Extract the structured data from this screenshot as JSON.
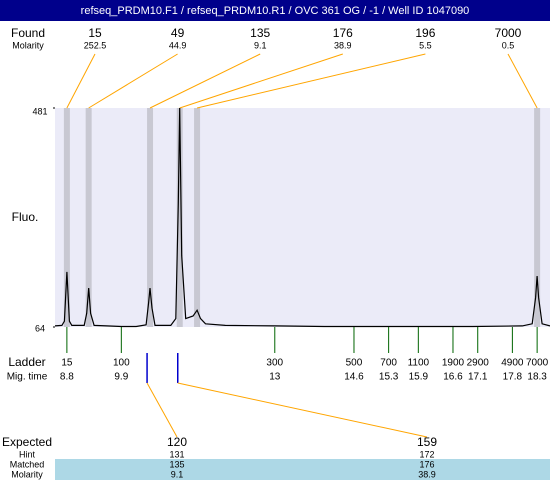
{
  "chart_data": {
    "type": "electropherogram",
    "title": "refseq_PRDM10.F1 / refseq_PRDM10.R1 / OVC 361 OG / -1 / Well ID 1047090",
    "ylabel": "Fluo.",
    "ylim": [
      64,
      481
    ],
    "yticks": [
      64,
      481
    ],
    "xlim": [
      8.56,
      18.56
    ],
    "color": "#000000",
    "found": {
      "label": "Found",
      "molarity_label": "Molarity",
      "sizes": [
        15,
        49,
        135,
        176,
        196,
        7000
      ],
      "molarity": [
        252.5,
        44.9,
        9.1,
        38.9,
        5.5,
        0.5
      ],
      "times": [
        8.8,
        9.24,
        10.48,
        11.08,
        11.43,
        18.3
      ]
    },
    "ladder": {
      "label": "Ladder",
      "time_label": "Mig. time",
      "sizes": [
        15,
        100,
        300,
        500,
        700,
        1100,
        1900,
        2900,
        4900,
        7000
      ],
      "times": [
        8.8,
        9.9,
        13,
        14.6,
        15.3,
        15.9,
        16.6,
        17.1,
        17.8,
        18.3
      ]
    },
    "trace": {
      "x": [
        8.56,
        8.7,
        8.75,
        8.8,
        8.85,
        8.9,
        9.15,
        9.2,
        9.24,
        9.28,
        9.35,
        9.6,
        9.9,
        10.2,
        10.4,
        10.45,
        10.48,
        10.52,
        10.58,
        10.9,
        11.0,
        11.05,
        11.08,
        11.12,
        11.2,
        11.35,
        11.43,
        11.5,
        11.6,
        12.0,
        13.0,
        14.0,
        15.0,
        16.0,
        17.0,
        18.0,
        18.2,
        18.27,
        18.3,
        18.33,
        18.4,
        18.56
      ],
      "values": [
        66,
        67,
        75,
        169,
        75,
        67,
        67,
        90,
        138,
        90,
        67,
        66,
        65,
        65,
        68,
        110,
        138,
        100,
        67,
        67,
        80,
        300,
        481,
        200,
        80,
        85,
        96,
        80,
        70,
        67,
        66,
        65,
        65,
        65,
        65,
        66,
        70,
        120,
        161,
        120,
        70,
        66
      ]
    },
    "expected": {
      "label": "Expected",
      "hint_label": "Hint",
      "matched_label": "Matched",
      "molarity_label": "Molarity",
      "sizes": [
        120,
        159
      ],
      "hint": [
        131,
        172
      ],
      "matched": [
        135,
        176
      ],
      "molarity": [
        9.1,
        38.9
      ],
      "times": [
        10.42,
        11.04
      ]
    }
  }
}
